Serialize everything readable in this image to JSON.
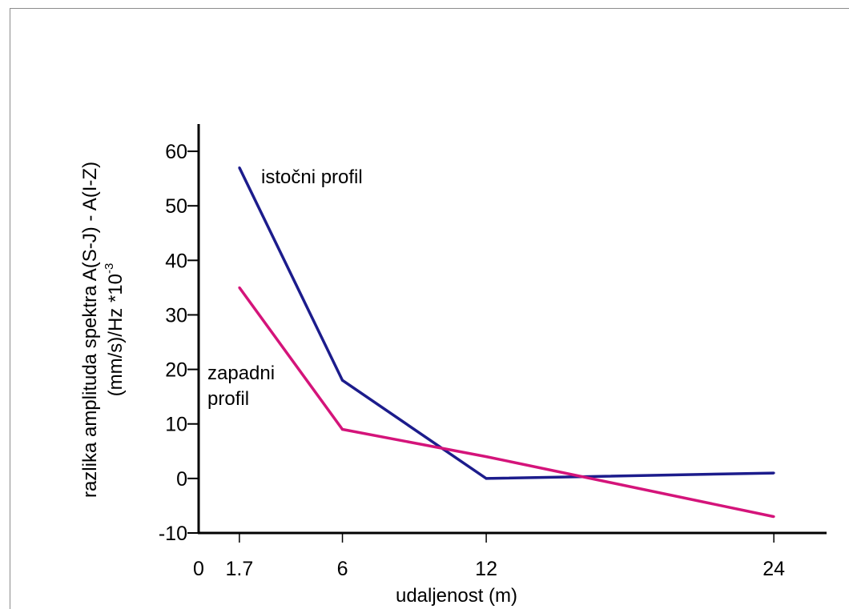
{
  "chart_data": {
    "type": "line",
    "title": "",
    "xlabel": "udaljenost (m)",
    "ylabel_line1": "razlika amplituda spektra A(S-J) - A(I-Z)",
    "ylabel_line2": "(mm/s)/Hz *10",
    "ylabel_exponent": "-3",
    "xlim": [
      0,
      26.2
    ],
    "ylim": [
      -10,
      65
    ],
    "x_ticks": [
      0,
      1.7,
      6,
      12,
      24
    ],
    "x_tick_labels": [
      "0",
      "1.7",
      "6",
      "12",
      "24"
    ],
    "y_ticks": [
      -10,
      0,
      10,
      20,
      30,
      40,
      50,
      60
    ],
    "y_tick_labels": [
      "-10",
      "0",
      "10",
      "20",
      "30",
      "40",
      "50",
      "60"
    ],
    "grid": false,
    "legend": "none",
    "series": [
      {
        "x": [
          1.7,
          6,
          12,
          24
        ],
        "values": [
          57,
          18,
          0,
          1
        ],
        "color": "#1c1c8c"
      },
      {
        "x": [
          1.7,
          6,
          12,
          24
        ],
        "values": [
          35,
          9,
          4,
          -7
        ],
        "color": "#d4147a"
      }
    ],
    "annotations": {
      "istocni": "istočni profil",
      "zapadni_line1": "zapadni",
      "zapadni_line2": "profil"
    }
  }
}
